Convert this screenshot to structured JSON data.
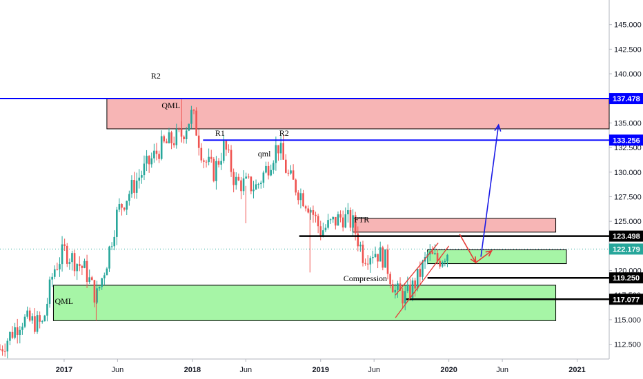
{
  "colors": {
    "up": "#26a69a",
    "down": "#ef5350",
    "blue_line": "#0000ff",
    "black_line": "#000000",
    "resistance_zone": "#f7b5b5",
    "support_zone": "#a6f5a6",
    "arrow_red": "#e53935",
    "arrow_blue": "#1a1ae6",
    "last_price": "#26a69a"
  },
  "chart_data": {
    "type": "candlestick",
    "title": "",
    "xlabel": "",
    "ylabel": "",
    "x_tick_labels": [
      "2017",
      "Jun",
      "2018",
      "Jun",
      "2019",
      "Jun",
      "2020",
      "Jun",
      "2021"
    ],
    "y_tick_labels": [
      "145.000",
      "142.500",
      "140.000",
      "137.500",
      "135.000",
      "132.500",
      "130.000",
      "127.500",
      "125.000",
      "122.500",
      "120.000",
      "117.500",
      "115.000",
      "112.500"
    ],
    "ylim": [
      111.0,
      147.5
    ],
    "x_range": [
      "2016-07",
      "2021-04"
    ],
    "price_tags": [
      {
        "label": "137.478",
        "value": 137.478,
        "style": "blue"
      },
      {
        "label": "133.256",
        "value": 133.256,
        "style": "blue"
      },
      {
        "label": "123.498",
        "value": 123.498,
        "style": "black"
      },
      {
        "label": "122.179",
        "value": 122.179,
        "style": "last"
      },
      {
        "label": "119.250",
        "value": 119.25,
        "style": "black"
      },
      {
        "label": "117.077",
        "value": 117.077,
        "style": "black"
      }
    ],
    "annotations": [
      "R2",
      "QML",
      "R1",
      "R2",
      "qml",
      "FTR",
      "Compression",
      "QML"
    ],
    "zones": [
      {
        "kind": "resistance",
        "from": "2017-05",
        "to": "2021-04",
        "y_low": 134.4,
        "y_high": 137.45
      },
      {
        "kind": "resistance",
        "from": "2019-04",
        "to": "2020-11",
        "y_low": 123.9,
        "y_high": 125.3
      },
      {
        "kind": "support",
        "from": "2016-12",
        "to": "2020-11",
        "y_low": 114.9,
        "y_high": 118.5
      },
      {
        "kind": "support",
        "from": "2019-11",
        "to": "2020-12",
        "y_low": 120.7,
        "y_high": 122.1
      }
    ],
    "levels": [
      {
        "value": 137.478,
        "from": "2016-07",
        "to": "2021-04",
        "style": "blue"
      },
      {
        "value": 133.256,
        "from": "2018-02",
        "to": "2021-04",
        "style": "blue"
      },
      {
        "value": 123.498,
        "from": "2018-11",
        "to": "2021-04",
        "style": "black"
      },
      {
        "value": 119.25,
        "from": "2019-11",
        "to": "2021-04",
        "style": "black"
      },
      {
        "value": 117.077,
        "from": "2019-09",
        "to": "2021-04",
        "style": "black"
      }
    ],
    "anchors": [
      {
        "date": "2016-07",
        "price": 112.0
      },
      {
        "date": "2016-09",
        "price": 115.0
      },
      {
        "date": "2016-11",
        "price": 114.5
      },
      {
        "date": "2016-12",
        "price": 120.0
      },
      {
        "date": "2017-01",
        "price": 122.0
      },
      {
        "date": "2017-03",
        "price": 120.0
      },
      {
        "date": "2017-04",
        "price": 117.2
      },
      {
        "date": "2017-05",
        "price": 121.0
      },
      {
        "date": "2017-06",
        "price": 126.0
      },
      {
        "date": "2017-08",
        "price": 129.5
      },
      {
        "date": "2017-10",
        "price": 132.5
      },
      {
        "date": "2017-12",
        "price": 133.8
      },
      {
        "date": "2018-01",
        "price": 136.0
      },
      {
        "date": "2018-02",
        "price": 131.5
      },
      {
        "date": "2018-03",
        "price": 130.0
      },
      {
        "date": "2018-04",
        "price": 132.7
      },
      {
        "date": "2018-05",
        "price": 129.0
      },
      {
        "date": "2018-07",
        "price": 128.5
      },
      {
        "date": "2018-08",
        "price": 130.5
      },
      {
        "date": "2018-09",
        "price": 132.8
      },
      {
        "date": "2018-10",
        "price": 129.5
      },
      {
        "date": "2018-12",
        "price": 126.5
      },
      {
        "date": "2019-01",
        "price": 124.0
      },
      {
        "date": "2019-03",
        "price": 125.5
      },
      {
        "date": "2019-04",
        "price": 124.8
      },
      {
        "date": "2019-05",
        "price": 121.5
      },
      {
        "date": "2019-06",
        "price": 122.0
      },
      {
        "date": "2019-07",
        "price": 121.2
      },
      {
        "date": "2019-08",
        "price": 117.8
      },
      {
        "date": "2019-09",
        "price": 117.3
      },
      {
        "date": "2019-10",
        "price": 119.0
      },
      {
        "date": "2019-11",
        "price": 121.5
      },
      {
        "date": "2019-12",
        "price": 121.0
      },
      {
        "date": "2020-01",
        "price": 122.1
      }
    ]
  }
}
